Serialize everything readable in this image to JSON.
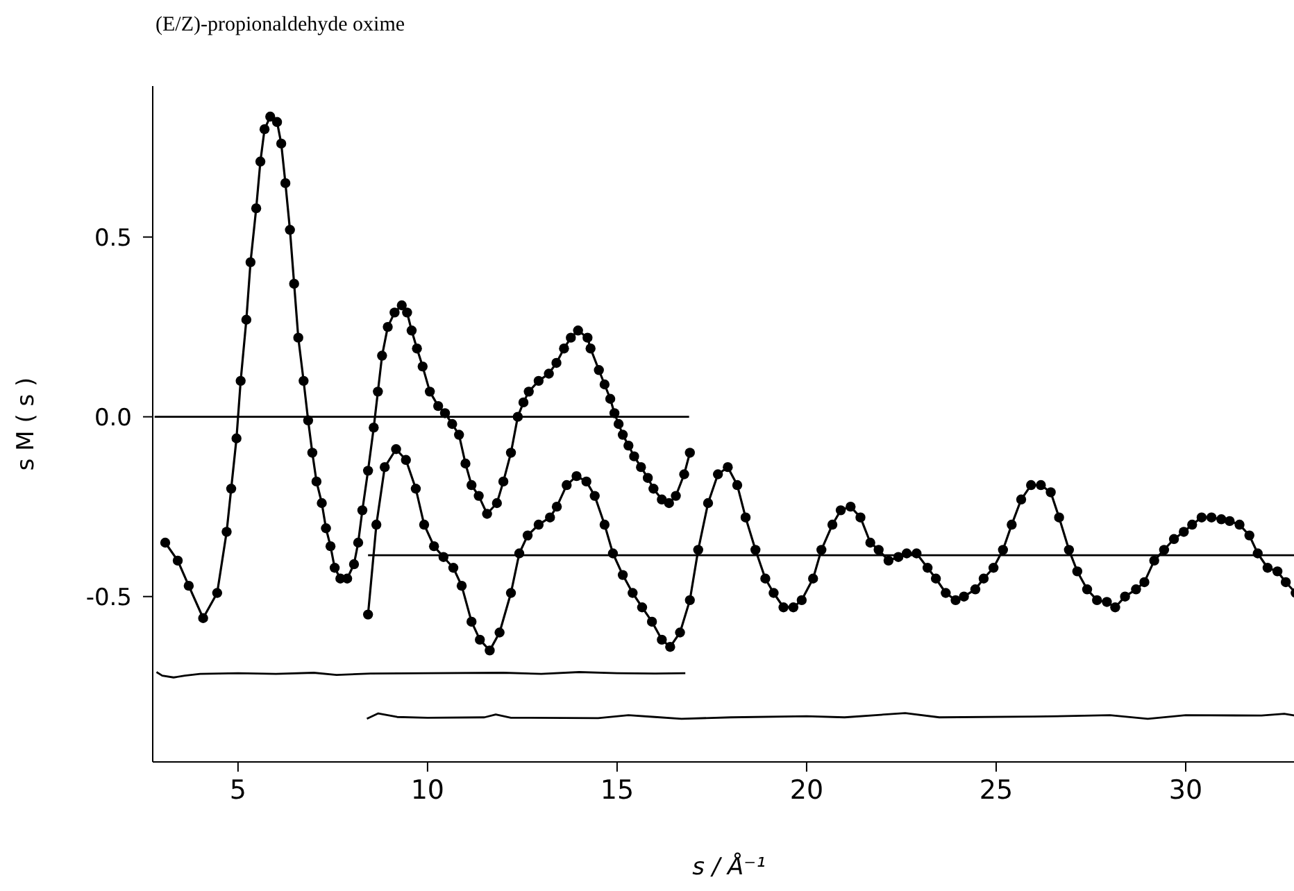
{
  "chart_data": {
    "type": "line",
    "title": "(E/Z)-propionaldehyde oxime",
    "xlabel": "s / Å⁻¹",
    "ylabel": "s M ( s )",
    "marker": "circle",
    "line_style": "solid",
    "xlim": [
      2.75,
      33.15
    ],
    "xticks": [
      5,
      10,
      15,
      20,
      25,
      30
    ],
    "ylim": [
      -0.96,
      0.92
    ],
    "yticks": [
      -0.5,
      {
        "value": 0,
        "label": "0.0"
      },
      0.5
    ],
    "series": [
      {
        "color": "#000000",
        "x": [
          3.08,
          3.41,
          3.7,
          4.08,
          4.45,
          4.7,
          4.82,
          4.96,
          5.07,
          5.22,
          5.33,
          5.48,
          5.59,
          5.7,
          5.85,
          6.03,
          6.14,
          6.25,
          6.37,
          6.48,
          6.59,
          6.73,
          6.85,
          6.96,
          7.07,
          7.21,
          7.32,
          7.44,
          7.55,
          7.7,
          7.88,
          8.06,
          8.17,
          8.28,
          8.43,
          8.58,
          8.69,
          8.8,
          8.95,
          9.13,
          9.32,
          9.46,
          9.58,
          9.72,
          9.87,
          10.06,
          10.28,
          10.46,
          10.65,
          10.83,
          11.0,
          11.16,
          11.35,
          11.57,
          11.83,
          12.0,
          12.2,
          12.38,
          12.53,
          12.67,
          12.93,
          13.2,
          13.4,
          13.6,
          13.78,
          13.97,
          14.22,
          14.3,
          14.52,
          14.67,
          14.82,
          14.93,
          15.04,
          15.15,
          15.3,
          15.45,
          15.63,
          15.81,
          15.96,
          16.18,
          16.37,
          16.55,
          16.77,
          16.92
        ],
        "values": [
          -0.35,
          -0.4,
          -0.47,
          -0.56,
          -0.49,
          -0.32,
          -0.2,
          -0.06,
          0.1,
          0.27,
          0.43,
          0.58,
          0.71,
          0.8,
          0.835,
          0.82,
          0.76,
          0.65,
          0.52,
          0.37,
          0.22,
          0.1,
          -0.01,
          -0.1,
          -0.18,
          -0.24,
          -0.31,
          -0.36,
          -0.42,
          -0.45,
          -0.45,
          -0.41,
          -0.35,
          -0.26,
          -0.15,
          -0.03,
          0.07,
          0.17,
          0.25,
          0.29,
          0.31,
          0.29,
          0.24,
          0.19,
          0.14,
          0.07,
          0.03,
          0.01,
          -0.02,
          -0.05,
          -0.13,
          -0.19,
          -0.22,
          -0.27,
          -0.24,
          -0.18,
          -0.1,
          0.0,
          0.04,
          0.07,
          0.1,
          0.12,
          0.15,
          0.19,
          0.22,
          0.24,
          0.22,
          0.19,
          0.13,
          0.09,
          0.05,
          0.01,
          -0.02,
          -0.05,
          -0.08,
          -0.11,
          -0.14,
          -0.17,
          -0.2,
          -0.23,
          -0.24,
          -0.22,
          -0.16,
          -0.1
        ]
      },
      {
        "color": "#000000",
        "x": [
          8.43,
          8.65,
          8.87,
          9.17,
          9.43,
          9.69,
          9.91,
          10.17,
          10.42,
          10.68,
          10.9,
          11.16,
          11.38,
          11.64,
          11.9,
          12.2,
          12.42,
          12.64,
          12.93,
          13.23,
          13.41,
          13.67,
          13.93,
          14.19,
          14.41,
          14.67,
          14.89,
          15.15,
          15.41,
          15.66,
          15.92,
          16.18,
          16.4,
          16.66,
          16.92,
          17.14,
          17.4,
          17.66,
          17.92,
          18.17,
          18.39,
          18.65,
          18.91,
          19.13,
          19.39,
          19.65,
          19.87,
          20.17,
          20.39,
          20.68,
          20.9,
          21.16,
          21.42,
          21.68,
          21.9,
          22.16,
          22.42,
          22.64,
          22.9,
          23.19,
          23.41,
          23.67,
          23.93,
          24.15,
          24.45,
          24.67,
          24.93,
          25.18,
          25.41,
          25.66,
          25.92,
          26.18,
          26.44,
          26.66,
          26.92,
          27.14,
          27.4,
          27.66,
          27.92,
          28.14,
          28.4,
          28.69,
          28.91,
          29.17,
          29.43,
          29.69,
          29.95,
          30.17,
          30.42,
          30.68,
          30.94,
          31.16,
          31.42,
          31.68,
          31.9,
          32.16,
          32.42,
          32.64,
          32.9,
          33.1
        ],
        "values": [
          -0.55,
          -0.3,
          -0.14,
          -0.09,
          -0.12,
          -0.2,
          -0.3,
          -0.36,
          -0.39,
          -0.42,
          -0.47,
          -0.57,
          -0.62,
          -0.65,
          -0.6,
          -0.49,
          -0.38,
          -0.33,
          -0.3,
          -0.28,
          -0.25,
          -0.19,
          -0.165,
          -0.18,
          -0.22,
          -0.3,
          -0.38,
          -0.44,
          -0.49,
          -0.53,
          -0.57,
          -0.62,
          -0.64,
          -0.6,
          -0.51,
          -0.37,
          -0.24,
          -0.16,
          -0.14,
          -0.19,
          -0.28,
          -0.37,
          -0.45,
          -0.49,
          -0.53,
          -0.53,
          -0.51,
          -0.45,
          -0.37,
          -0.3,
          -0.26,
          -0.25,
          -0.28,
          -0.35,
          -0.37,
          -0.4,
          -0.39,
          -0.38,
          -0.38,
          -0.42,
          -0.45,
          -0.49,
          -0.51,
          -0.5,
          -0.48,
          -0.45,
          -0.42,
          -0.37,
          -0.3,
          -0.23,
          -0.19,
          -0.19,
          -0.21,
          -0.28,
          -0.37,
          -0.43,
          -0.48,
          -0.51,
          -0.515,
          -0.53,
          -0.5,
          -0.48,
          -0.46,
          -0.4,
          -0.37,
          -0.34,
          -0.32,
          -0.3,
          -0.28,
          -0.28,
          -0.285,
          -0.29,
          -0.3,
          -0.33,
          -0.38,
          -0.42,
          -0.43,
          -0.46,
          -0.49,
          -0.51
        ]
      },
      {
        "color": "#000000",
        "marker": "none",
        "x": [
          2.8,
          16.9
        ],
        "values": [
          0,
          0
        ]
      },
      {
        "color": "#000000",
        "marker": "none",
        "x": [
          8.43,
          33.15
        ],
        "values": [
          -0.385,
          -0.385
        ]
      },
      {
        "color": "#000000",
        "marker": "none",
        "x": [
          2.85,
          3.0,
          3.3,
          3.6,
          4,
          5,
          6,
          7,
          7.6,
          8.5,
          10,
          12,
          13,
          14,
          15,
          16,
          16.8
        ],
        "values": [
          -0.71,
          -0.72,
          -0.725,
          -0.72,
          -0.715,
          -0.713,
          -0.715,
          -0.712,
          -0.718,
          -0.714,
          -0.713,
          -0.712,
          -0.715,
          -0.71,
          -0.713,
          -0.714,
          -0.713
        ]
      },
      {
        "color": "#000000",
        "marker": "none",
        "x": [
          8.4,
          8.7,
          9.2,
          10,
          11.5,
          11.8,
          12.2,
          14.5,
          15.3,
          16,
          16.7,
          18,
          20,
          21,
          22.6,
          23.5,
          26,
          28,
          29,
          30,
          32,
          32.6,
          33.1
        ],
        "values": [
          -0.84,
          -0.825,
          -0.835,
          -0.837,
          -0.836,
          -0.828,
          -0.837,
          -0.838,
          -0.83,
          -0.835,
          -0.84,
          -0.836,
          -0.833,
          -0.836,
          -0.824,
          -0.836,
          -0.834,
          -0.83,
          -0.84,
          -0.83,
          -0.831,
          -0.826,
          -0.835
        ]
      }
    ]
  }
}
